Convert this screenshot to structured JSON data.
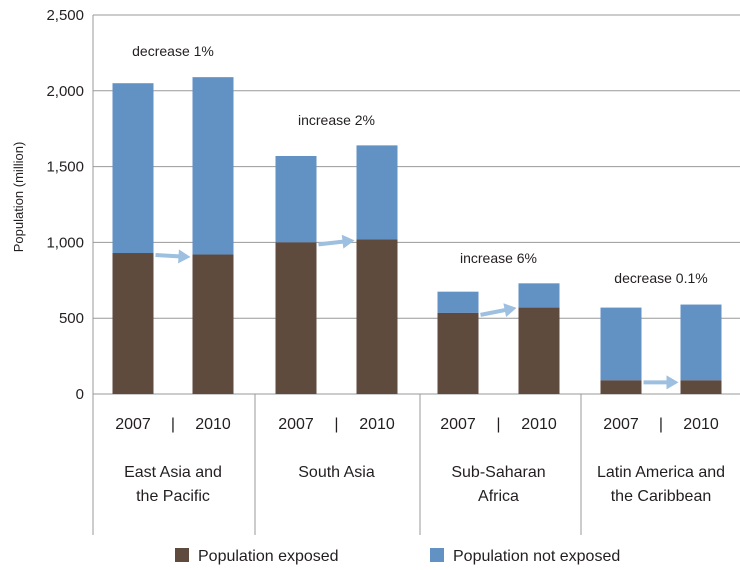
{
  "chart_data": {
    "type": "bar",
    "stacked": true,
    "ylabel": "Population (million)",
    "ylim": [
      0,
      2500
    ],
    "yticks": [
      0,
      500,
      1000,
      1500,
      2000,
      2500
    ],
    "ytick_labels": [
      "0",
      "500",
      "1,000",
      "1,500",
      "2,000",
      "2,500"
    ],
    "grid": true,
    "legend_position": "bottom",
    "colors": {
      "exposed": "#5f4b3e",
      "not_exposed": "#6291c4",
      "arrow": "#9dbfe0",
      "grid": "#999999"
    },
    "series": [
      {
        "name": "Population exposed",
        "color": "#5f4b3e"
      },
      {
        "name": "Population not exposed",
        "color": "#6291c4"
      }
    ],
    "groups": [
      {
        "label_lines": [
          "East Asia and",
          "the Pacific"
        ],
        "years": [
          "2007",
          "2010"
        ],
        "separator": "|",
        "exposed": [
          930,
          920
        ],
        "total": [
          2050,
          2090
        ],
        "annotation": "decrease 1%"
      },
      {
        "label_lines": [
          "South Asia"
        ],
        "years": [
          "2007",
          "2010"
        ],
        "separator": "|",
        "exposed": [
          1000,
          1020
        ],
        "total": [
          1570,
          1640
        ],
        "annotation": "increase 2%"
      },
      {
        "label_lines": [
          "Sub-Saharan",
          "Africa"
        ],
        "years": [
          "2007",
          "2010"
        ],
        "separator": "|",
        "exposed": [
          535,
          570
        ],
        "total": [
          675,
          730
        ],
        "annotation": "increase 6%"
      },
      {
        "label_lines": [
          "Latin America and",
          "the Caribbean"
        ],
        "years": [
          "2007",
          "2010"
        ],
        "separator": "|",
        "exposed": [
          90,
          90
        ],
        "total": [
          570,
          590
        ],
        "annotation": "decrease 0.1%"
      }
    ]
  }
}
